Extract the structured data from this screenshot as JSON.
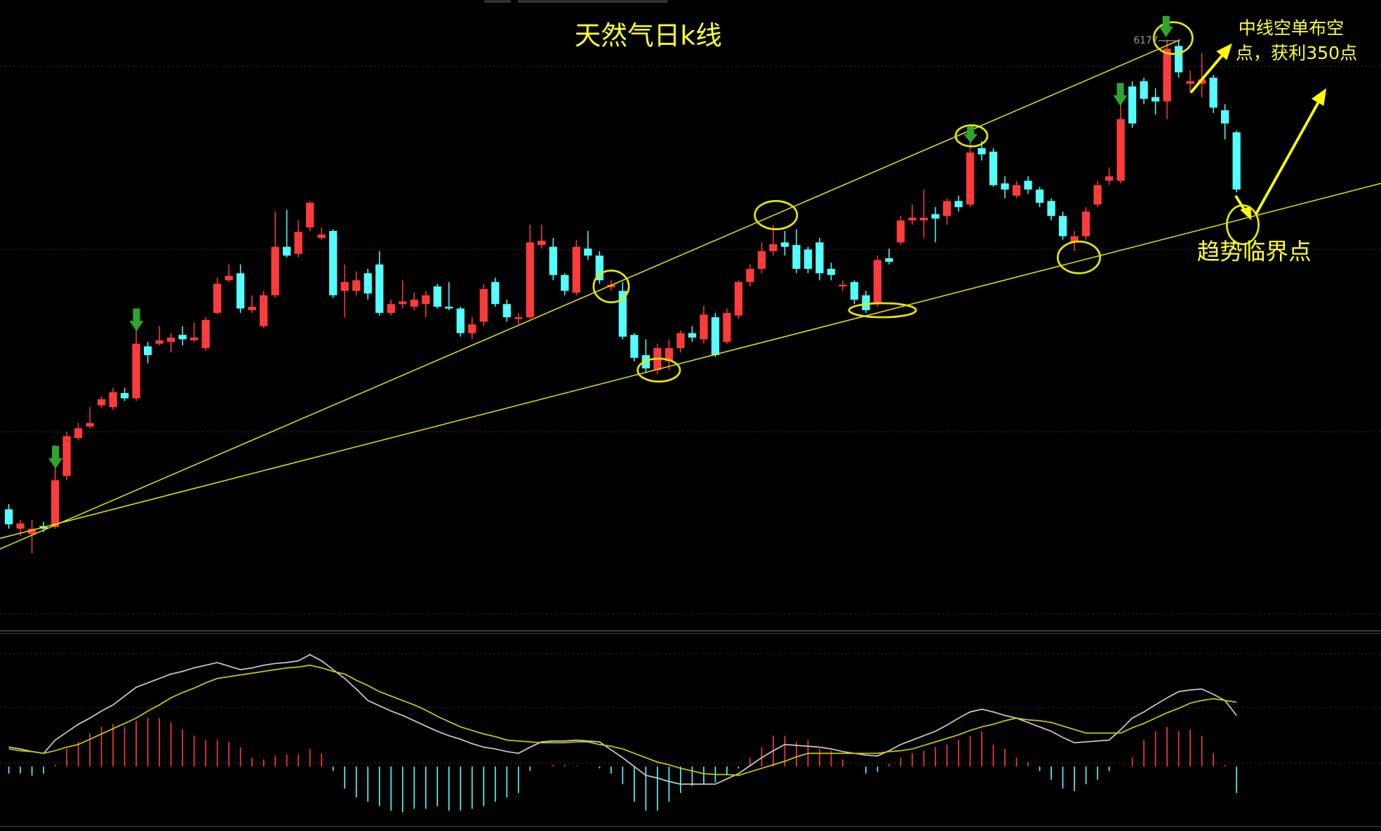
{
  "chart_data": {
    "type": "candlestick",
    "title": "天然气日k线",
    "annotations": [
      "中线空单布空",
      "点，获利350点",
      "趋势临界点"
    ],
    "price_label": 6177,
    "up_color": "#ff3b3b",
    "down_color": "#54ffff",
    "ylim": [
      4867,
      6267
    ],
    "ohlc": [
      [
        5111,
        5123,
        5067,
        5077
      ],
      [
        5067,
        5087,
        5051,
        5079
      ],
      [
        5055,
        5087,
        5011,
        5067
      ],
      [
        5073,
        5083,
        5059,
        5067
      ],
      [
        5071,
        5257,
        5067,
        5177
      ],
      [
        5187,
        5287,
        5177,
        5277
      ],
      [
        5273,
        5307,
        5267,
        5295
      ],
      [
        5299,
        5343,
        5295,
        5307
      ],
      [
        5347,
        5367,
        5341,
        5361
      ],
      [
        5343,
        5387,
        5337,
        5377
      ],
      [
        5375,
        5387,
        5357,
        5363
      ],
      [
        5363,
        5567,
        5357,
        5487
      ],
      [
        5481,
        5491,
        5443,
        5461
      ],
      [
        5487,
        5527,
        5483,
        5495
      ],
      [
        5491,
        5511,
        5467,
        5501
      ],
      [
        5507,
        5527,
        5483,
        5497
      ],
      [
        5495,
        5535,
        5491,
        5501
      ],
      [
        5477,
        5547,
        5471,
        5541
      ],
      [
        5557,
        5637,
        5553,
        5623
      ],
      [
        5631,
        5667,
        5627,
        5641
      ],
      [
        5647,
        5667,
        5557,
        5567
      ],
      [
        5563,
        5597,
        5557,
        5571
      ],
      [
        5527,
        5607,
        5523,
        5597
      ],
      [
        5597,
        5787,
        5591,
        5707
      ],
      [
        5707,
        5791,
        5683,
        5687
      ],
      [
        5691,
        5767,
        5683,
        5741
      ],
      [
        5751,
        5811,
        5743,
        5807
      ],
      [
        5727,
        5751,
        5723,
        5735
      ],
      [
        5743,
        5747,
        5591,
        5597
      ],
      [
        5607,
        5667,
        5547,
        5627
      ],
      [
        5607,
        5651,
        5597,
        5631
      ],
      [
        5647,
        5657,
        5587,
        5601
      ],
      [
        5667,
        5697,
        5551,
        5557
      ],
      [
        5557,
        5587,
        5551,
        5577
      ],
      [
        5577,
        5631,
        5567,
        5583
      ],
      [
        5571,
        5603,
        5563,
        5587
      ],
      [
        5577,
        5607,
        5547,
        5597
      ],
      [
        5617,
        5623,
        5567,
        5571
      ],
      [
        5571,
        5627,
        5563,
        5567
      ],
      [
        5567,
        5571,
        5503,
        5511
      ],
      [
        5511,
        5547,
        5497,
        5531
      ],
      [
        5537,
        5623,
        5527,
        5611
      ],
      [
        5627,
        5637,
        5571,
        5577
      ],
      [
        5577,
        5587,
        5537,
        5547
      ],
      [
        5543,
        5557,
        5531,
        5547
      ],
      [
        5547,
        5757,
        5543,
        5717
      ],
      [
        5711,
        5757,
        5703,
        5721
      ],
      [
        5707,
        5727,
        5631,
        5643
      ],
      [
        5643,
        5647,
        5597,
        5607
      ],
      [
        5603,
        5723,
        5597,
        5707
      ],
      [
        5703,
        5743,
        5677,
        5687
      ],
      [
        5687,
        5697,
        5623,
        5631
      ],
      [
        5615,
        5631,
        5607,
        5621
      ],
      [
        5607,
        5627,
        5497,
        5503
      ],
      [
        5507,
        5511,
        5447,
        5455
      ],
      [
        5461,
        5497,
        5423,
        5431
      ],
      [
        5427,
        5487,
        5417,
        5477
      ],
      [
        5447,
        5497,
        5427,
        5477
      ],
      [
        5477,
        5517,
        5467,
        5511
      ],
      [
        5511,
        5527,
        5491,
        5501
      ],
      [
        5497,
        5573,
        5487,
        5553
      ],
      [
        5547,
        5557,
        5457,
        5461
      ],
      [
        5491,
        5567,
        5487,
        5557
      ],
      [
        5551,
        5631,
        5543,
        5627
      ],
      [
        5627,
        5667,
        5617,
        5657
      ],
      [
        5657,
        5717,
        5647,
        5697
      ],
      [
        5697,
        5757,
        5687,
        5713
      ],
      [
        5717,
        5743,
        5687,
        5707
      ],
      [
        5711,
        5747,
        5647,
        5657
      ],
      [
        5701,
        5707,
        5647,
        5657
      ],
      [
        5717,
        5727,
        5631,
        5647
      ],
      [
        5657,
        5671,
        5631,
        5643
      ],
      [
        5617,
        5631,
        5607,
        5621
      ],
      [
        5627,
        5631,
        5577,
        5587
      ],
      [
        5597,
        5607,
        5557,
        5563
      ],
      [
        5577,
        5687,
        5571,
        5677
      ],
      [
        5681,
        5703,
        5667,
        5673
      ],
      [
        5717,
        5777,
        5711,
        5767
      ],
      [
        5767,
        5803,
        5757,
        5773
      ],
      [
        5767,
        5837,
        5727,
        5773
      ],
      [
        5781,
        5797,
        5717,
        5771
      ],
      [
        5777,
        5817,
        5757,
        5811
      ],
      [
        5811,
        5823,
        5787,
        5797
      ],
      [
        5803,
        5967,
        5797,
        5921
      ],
      [
        5931,
        5947,
        5903,
        5917
      ],
      [
        5923,
        5931,
        5843,
        5847
      ],
      [
        5851,
        5867,
        5817,
        5837
      ],
      [
        5823,
        5857,
        5817,
        5847
      ],
      [
        5857,
        5867,
        5827,
        5837
      ],
      [
        5837,
        5843,
        5797,
        5807
      ],
      [
        5811,
        5817,
        5767,
        5777
      ],
      [
        5777,
        5787,
        5723,
        5731
      ],
      [
        5717,
        5743,
        5697,
        5731
      ],
      [
        5731,
        5797,
        5723,
        5787
      ],
      [
        5803,
        5857,
        5797,
        5847
      ],
      [
        5857,
        5887,
        5847,
        5867
      ],
      [
        5857,
        6077,
        5851,
        5997
      ],
      [
        6071,
        6083,
        5977,
        5987
      ],
      [
        6083,
        6091,
        6031,
        6043
      ],
      [
        6047,
        6067,
        6007,
        6037
      ],
      [
        6037,
        6177,
        5997,
        6157
      ],
      [
        6163,
        6177,
        6091,
        6103
      ],
      [
        6077,
        6107,
        6057,
        6083
      ],
      [
        6077,
        6147,
        6047,
        6087
      ],
      [
        6091,
        6097,
        6011,
        6023
      ],
      [
        6017,
        6031,
        5951,
        5987
      ],
      [
        5967,
        5971,
        5831,
        5837
      ]
    ],
    "macd_ylim": [
      -65,
      150
    ],
    "macd_hist": [
      -8,
      -8,
      -10,
      -8,
      2,
      20,
      28,
      38,
      45,
      48,
      45,
      52,
      55,
      55,
      50,
      42,
      35,
      30,
      30,
      28,
      22,
      10,
      8,
      12,
      14,
      14,
      20,
      15,
      -5,
      -25,
      -35,
      -40,
      -45,
      -50,
      -52,
      -48,
      -48,
      -45,
      -50,
      -50,
      -48,
      -45,
      -40,
      -35,
      -30,
      -5,
      0,
      2,
      2,
      1,
      0,
      -2,
      -8,
      -20,
      -40,
      -50,
      -50,
      -40,
      -30,
      -22,
      -20,
      -18,
      -10,
      -2,
      10,
      22,
      35,
      35,
      28,
      30,
      20,
      18,
      8,
      0,
      -8,
      -6,
      3,
      10,
      15,
      18,
      22,
      25,
      30,
      35,
      40,
      25,
      20,
      10,
      5,
      -5,
      -15,
      -25,
      -28,
      -20,
      -15,
      -5,
      0,
      10,
      30,
      40,
      45,
      40,
      42,
      35,
      15,
      2,
      -30
    ],
    "dif": [
      22,
      20,
      17,
      15,
      30,
      39,
      48,
      55,
      63,
      70,
      80,
      90,
      95,
      100,
      105,
      108,
      112,
      115,
      118,
      114,
      110,
      112,
      115,
      117,
      118,
      120,
      127,
      120,
      110,
      100,
      88,
      75,
      69,
      63,
      58,
      52,
      46,
      40,
      35,
      31,
      26,
      22,
      20,
      17,
      15,
      22,
      28,
      29,
      29,
      30,
      29,
      28,
      19,
      10,
      0,
      -10,
      -13,
      -17,
      -20,
      -20,
      -20,
      -20,
      -14,
      -8,
      1,
      10,
      18,
      25,
      24,
      23,
      22,
      20,
      17,
      15,
      13,
      12,
      18,
      25,
      30,
      35,
      40,
      47,
      55,
      62,
      65,
      62,
      58,
      55,
      50,
      45,
      40,
      33,
      27,
      28,
      29,
      30,
      42,
      55,
      62,
      70,
      78,
      85,
      87,
      88,
      82,
      75,
      58
    ],
    "dea": [
      20,
      18,
      17,
      15,
      18,
      22,
      25,
      31,
      37,
      43,
      49,
      55,
      63,
      70,
      78,
      84,
      89,
      95,
      100,
      102,
      104,
      106,
      108,
      110,
      112,
      113,
      115,
      112,
      108,
      105,
      98,
      92,
      85,
      80,
      75,
      70,
      64,
      57,
      51,
      45,
      41,
      37,
      34,
      30,
      29,
      28,
      27,
      27,
      27,
      28,
      28,
      25,
      23,
      20,
      15,
      10,
      5,
      2,
      -2,
      -5,
      -8,
      -9,
      -9,
      -10,
      -6,
      -2,
      2,
      6,
      11,
      15,
      15,
      15,
      15,
      15,
      15,
      15,
      17,
      18,
      20,
      24,
      28,
      32,
      36,
      41,
      45,
      48,
      52,
      55,
      53,
      52,
      50,
      46,
      42,
      38,
      38,
      38,
      38,
      44,
      49,
      55,
      61,
      66,
      72,
      75,
      77,
      75,
      73
    ],
    "dif_color": "#c8c8c8",
    "dea_color": "#c8c800"
  }
}
